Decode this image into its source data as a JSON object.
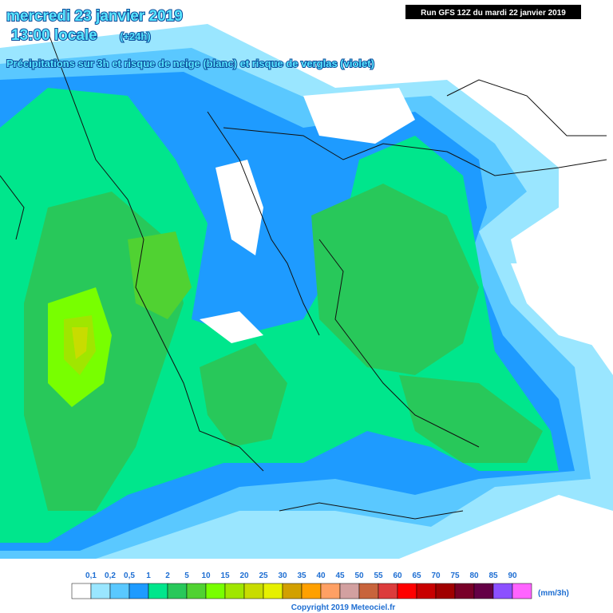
{
  "header": {
    "title_date": "mercredi 23 janvier 2019",
    "title_time": "13:00 locale",
    "title_offset": "(+24h)",
    "subtitle": "Précipitations sur 3h et risque de neige (blanc) et risque de verglas (violet)",
    "run": "Run GFS 12Z du mardi 22 janvier 2019"
  },
  "legend": {
    "labels": [
      "0,1",
      "0,2",
      "0,5",
      "1",
      "2",
      "5",
      "10",
      "15",
      "20",
      "25",
      "30",
      "35",
      "40",
      "45",
      "50",
      "55",
      "60",
      "65",
      "70",
      "75",
      "80",
      "85",
      "90"
    ],
    "colors": [
      "#ffffff",
      "#9ae6ff",
      "#5ac8ff",
      "#1e9bff",
      "#00e68c",
      "#28c85a",
      "#50d232",
      "#78ff00",
      "#a0e600",
      "#c8dc00",
      "#e6f000",
      "#d2a000",
      "#ffa000",
      "#ffa064",
      "#d2a0a0",
      "#c8643c",
      "#dc3c3c",
      "#ff0000",
      "#c80000",
      "#a00000",
      "#780028",
      "#640046",
      "#8c50ff",
      "#ff64ff"
    ],
    "units": "(mm/3h)"
  },
  "footer": {
    "copyright": "Copyright 2019 Meteociel.fr"
  }
}
